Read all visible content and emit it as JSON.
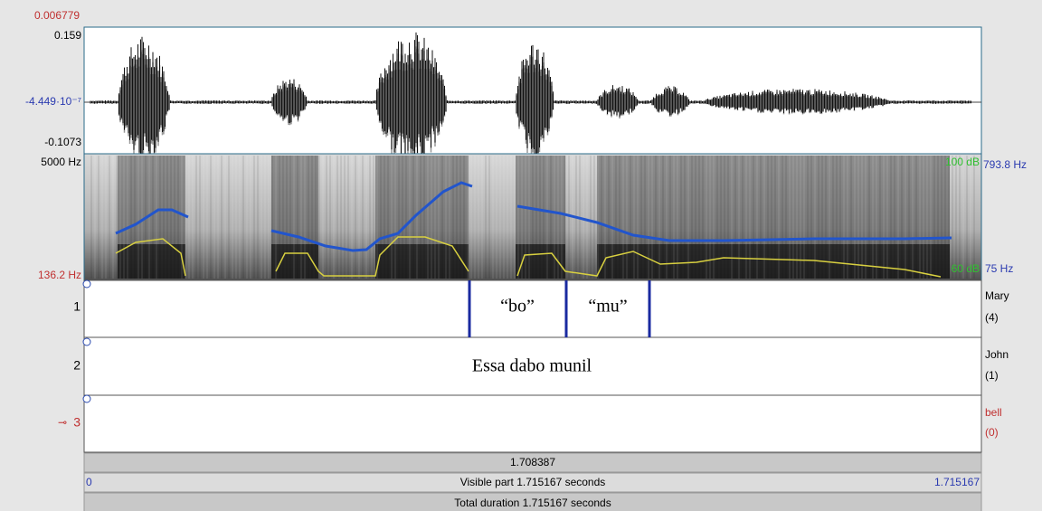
{
  "waveform": {
    "cursor_time": "0.006779",
    "max": "0.159",
    "zero": "-4.449·10⁻⁷",
    "min": "-0.1073"
  },
  "spectrogram": {
    "freq_max": "5000 Hz",
    "freq_min": "136.2 Hz",
    "intensity_max": "100 dB",
    "pitch_max": "793.8 Hz",
    "intensity_min": "60 dB",
    "pitch_min": "75 Hz"
  },
  "tiers": [
    {
      "number": "1",
      "name": "Mary",
      "count": "(4)",
      "intervals": [
        "“bo”",
        "“mu”"
      ]
    },
    {
      "number": "2",
      "name": "John",
      "count": "(1)",
      "intervals": [
        "Essa dabo munil"
      ]
    },
    {
      "number": "3",
      "name": "bell",
      "count": "(0)",
      "intervals": []
    }
  ],
  "status": {
    "selection": "1.708387",
    "start": "0",
    "visible": "Visible part 1.715167 seconds",
    "end": "1.715167",
    "total": "Total duration 1.715167 seconds"
  }
}
